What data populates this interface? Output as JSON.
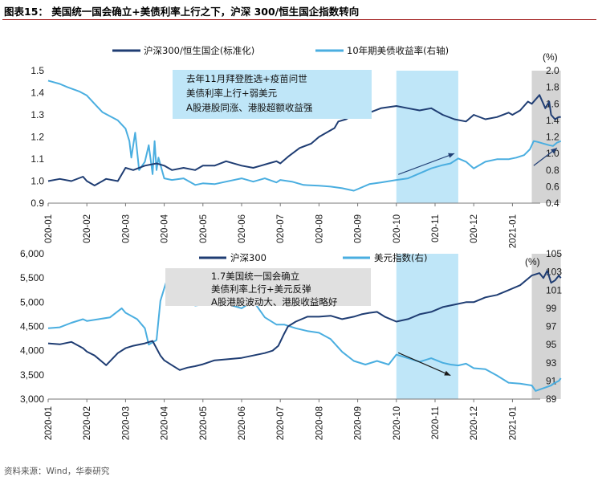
{
  "figure_title": "图表15： 美国统一国会确立+美债利率上行之下，沪深 300/恒生国企指数转向",
  "source": "资料来源：Wind，华泰研究",
  "colors": {
    "dark": "#1f3d73",
    "light": "#4aaee0",
    "highlight": "#bfe6f8",
    "gray": "#d4d4d4",
    "callout": "#e0e0e0",
    "title_rule": "#9a0d0d"
  },
  "chart_data": [
    {
      "type": "line",
      "legend": [
        {
          "name": "沪深300/恒生国企(标准化)",
          "key": "ratio"
        },
        {
          "name": "10年期美债收益率(右轴)",
          "key": "yield"
        }
      ],
      "y_ticks": [
        "1.5",
        "1.4",
        "1.3",
        "1.2",
        "1.1",
        "1.0",
        "0.9"
      ],
      "y_range": [
        0.9,
        1.5
      ],
      "y2_ticks": [
        "2.0",
        "1.8",
        "1.6",
        "1.4",
        "1.2",
        "1.0",
        "0.8",
        "0.6",
        "0.4"
      ],
      "y2_range": [
        0.4,
        2.0
      ],
      "y2_unit": "(%)",
      "x_ticks": [
        "2020-01",
        "2020-02",
        "2020-03",
        "2020-04",
        "2020-05",
        "2020-06",
        "2020-07",
        "2020-08",
        "2020-09",
        "2020-10",
        "2020-11",
        "2020-12",
        "2021-01"
      ],
      "x_tick_labels": [
        "020-01",
        "020-02",
        "020-03",
        "020-04",
        "020-05",
        "020-06",
        "020-07",
        "020-08",
        "020-09",
        "020-10",
        "020-11",
        "020-12",
        "2021-01"
      ],
      "highlight_month_range": [
        9.0,
        10.6
      ],
      "gray_month_range": [
        12.5,
        13.25
      ],
      "callout": [
        "去年11月拜登胜选+疫苗问世",
        "美债利率上行+弱美元",
        "A股港股同涨、港股超额收益强"
      ],
      "arrows": [
        {
          "from": [
            9.05,
            1.03
          ],
          "to": [
            10.5,
            1.125
          ]
        },
        {
          "from": [
            12.55,
            1.07
          ],
          "to": [
            13.15,
            1.15
          ]
        }
      ],
      "series": {
        "ratio": {
          "x": [
            0,
            0.3,
            0.6,
            0.9,
            1.0,
            1.2,
            1.5,
            1.8,
            2.0,
            2.2,
            2.5,
            2.8,
            3.0,
            3.2,
            3.5,
            3.8,
            4.0,
            4.3,
            4.6,
            5.0,
            5.3,
            5.5,
            5.7,
            5.9,
            6.0,
            6.2,
            6.5,
            6.8,
            7.0,
            7.2,
            7.4,
            7.5,
            7.7,
            8.0,
            8.3,
            8.6,
            9.0,
            9.3,
            9.6,
            9.9,
            10.2,
            10.5,
            10.8,
            11.0,
            11.3,
            11.6,
            11.9,
            12.0,
            12.2,
            12.4,
            12.5,
            12.7,
            12.85,
            12.95,
            13.0,
            13.1,
            13.2,
            13.25
          ],
          "values": [
            1.0,
            1.01,
            1.0,
            1.02,
            1.0,
            0.98,
            1.01,
            1.0,
            1.06,
            1.05,
            1.07,
            1.08,
            1.07,
            1.05,
            1.06,
            1.05,
            1.07,
            1.07,
            1.09,
            1.07,
            1.06,
            1.07,
            1.08,
            1.09,
            1.08,
            1.11,
            1.15,
            1.17,
            1.2,
            1.22,
            1.24,
            1.27,
            1.28,
            1.31,
            1.31,
            1.33,
            1.34,
            1.33,
            1.32,
            1.33,
            1.3,
            1.28,
            1.27,
            1.3,
            1.28,
            1.29,
            1.31,
            1.3,
            1.32,
            1.36,
            1.35,
            1.39,
            1.33,
            1.36,
            1.3,
            1.28,
            1.29,
            1.29
          ]
        },
        "yield": {
          "x": [
            0,
            0.3,
            0.5,
            0.8,
            1.0,
            1.2,
            1.4,
            1.6,
            1.8,
            2.0,
            2.1,
            2.15,
            2.25,
            2.35,
            2.5,
            2.6,
            2.7,
            2.75,
            2.8,
            2.85,
            3.0,
            3.2,
            3.5,
            3.8,
            4.0,
            4.3,
            4.6,
            5.0,
            5.3,
            5.6,
            5.9,
            6.0,
            6.3,
            6.6,
            7.0,
            7.3,
            7.6,
            7.9,
            8.0,
            8.3,
            8.6,
            9.0,
            9.3,
            9.6,
            9.9,
            10.2,
            10.4,
            10.6,
            10.8,
            11.0,
            11.3,
            11.6,
            11.9,
            12.1,
            12.3,
            12.45,
            12.55,
            12.65,
            12.8,
            12.95,
            13.05,
            13.15,
            13.25
          ],
          "values": [
            1.88,
            1.84,
            1.8,
            1.75,
            1.7,
            1.6,
            1.5,
            1.45,
            1.4,
            1.3,
            1.15,
            0.95,
            1.25,
            0.8,
            0.9,
            1.1,
            0.75,
            1.15,
            0.8,
            0.95,
            0.7,
            0.68,
            0.7,
            0.62,
            0.64,
            0.63,
            0.66,
            0.7,
            0.66,
            0.7,
            0.65,
            0.68,
            0.66,
            0.62,
            0.61,
            0.6,
            0.58,
            0.55,
            0.57,
            0.63,
            0.65,
            0.68,
            0.7,
            0.76,
            0.82,
            0.86,
            0.88,
            0.94,
            0.9,
            0.82,
            0.9,
            0.93,
            0.93,
            0.95,
            0.98,
            1.05,
            1.15,
            1.14,
            1.12,
            1.1,
            1.09,
            1.13,
            1.15
          ]
        }
      }
    },
    {
      "type": "line",
      "legend": [
        {
          "name": "沪深300",
          "key": "hs300"
        },
        {
          "name": "美元指数(右)",
          "key": "dxy"
        }
      ],
      "y_ticks": [
        "6,000",
        "5,500",
        "5,000",
        "4,500",
        "4,000",
        "3,500",
        "3,000"
      ],
      "y_range": [
        3000,
        6000
      ],
      "y2_ticks": [
        "105",
        "103",
        "101",
        "99",
        "97",
        "95",
        "93",
        "91",
        "89"
      ],
      "y2_range": [
        89,
        105
      ],
      "y2_unit": "(%)",
      "x_ticks": [
        "2020-01",
        "2020-02",
        "2020-03",
        "2020-04",
        "2020-05",
        "2020-06",
        "2020-07",
        "2020-08",
        "2020-09",
        "2020-10",
        "2020-11",
        "2020-12",
        "2021-01"
      ],
      "x_tick_labels": [
        "2020-01",
        "2020-02",
        "2020-03",
        "2020-04",
        "2020-05",
        "2020-06",
        "2020-07",
        "2020-08",
        "2020-09",
        "2020-10",
        "2020-11",
        "2020-12",
        "2021-01"
      ],
      "highlight_month_range": [
        9.0,
        10.6
      ],
      "gray_month_range": [
        12.5,
        13.25
      ],
      "callout": [
        "1.7美国统一国会确立",
        "美债利率上行+美元反弹",
        "A股港股波动大、港股收益略好"
      ],
      "arrows": [
        {
          "from": [
            9.05,
            94.1
          ],
          "to": [
            10.4,
            91.6
          ]
        }
      ],
      "series": {
        "hs300": {
          "x": [
            0,
            0.3,
            0.6,
            0.9,
            1.0,
            1.2,
            1.5,
            1.8,
            2.0,
            2.2,
            2.5,
            2.7,
            2.9,
            3.0,
            3.2,
            3.4,
            3.6,
            3.8,
            4.0,
            4.3,
            4.6,
            5.0,
            5.3,
            5.6,
            5.8,
            5.95,
            6.1,
            6.2,
            6.4,
            6.7,
            7.0,
            7.3,
            7.6,
            7.9,
            8.1,
            8.3,
            8.5,
            8.7,
            9.0,
            9.3,
            9.6,
            9.9,
            10.2,
            10.5,
            10.8,
            11.0,
            11.3,
            11.6,
            11.9,
            12.2,
            12.5,
            12.7,
            12.8,
            12.9,
            13.0,
            13.1,
            13.2,
            13.25
          ],
          "values": [
            4150,
            4130,
            4180,
            4050,
            3980,
            3900,
            3700,
            3950,
            4050,
            4100,
            4150,
            4200,
            3900,
            3800,
            3700,
            3600,
            3650,
            3680,
            3720,
            3800,
            3820,
            3850,
            3900,
            3950,
            4000,
            4100,
            4350,
            4500,
            4600,
            4700,
            4700,
            4720,
            4650,
            4700,
            4750,
            4780,
            4800,
            4700,
            4600,
            4650,
            4750,
            4800,
            4900,
            4950,
            5000,
            5000,
            5100,
            5150,
            5250,
            5350,
            5550,
            5600,
            5500,
            5650,
            5400,
            5450,
            5550,
            5500
          ]
        },
        "dxy": {
          "x": [
            0,
            0.3,
            0.6,
            0.9,
            1.0,
            1.3,
            1.6,
            1.9,
            2.0,
            2.3,
            2.5,
            2.6,
            2.8,
            2.9,
            3.0,
            3.1,
            3.2,
            3.3,
            3.5,
            3.8,
            4.0,
            4.3,
            4.6,
            5.0,
            5.3,
            5.6,
            5.9,
            6.1,
            6.4,
            6.7,
            7.0,
            7.3,
            7.6,
            7.9,
            8.2,
            8.5,
            8.8,
            9.0,
            9.3,
            9.6,
            9.9,
            10.2,
            10.4,
            10.6,
            10.8,
            11.0,
            11.3,
            11.6,
            11.9,
            12.2,
            12.5,
            12.6,
            12.8,
            13.0,
            13.1,
            13.2,
            13.25
          ],
          "values": [
            96.8,
            96.9,
            97.4,
            97.8,
            97.6,
            97.8,
            98.0,
            99.0,
            98.5,
            97.8,
            96.8,
            95.0,
            95.5,
            99.8,
            101.2,
            102.5,
            100.8,
            99.5,
            100.1,
            99.3,
            99.4,
            100.0,
            99.5,
            99.0,
            99.8,
            98.0,
            97.2,
            97.2,
            96.8,
            96.5,
            96.3,
            95.6,
            94.2,
            93.2,
            92.8,
            93.2,
            92.8,
            93.9,
            93.5,
            93.1,
            93.5,
            93.0,
            92.8,
            92.7,
            92.9,
            92.4,
            92.3,
            91.6,
            90.8,
            90.7,
            90.5,
            89.9,
            90.2,
            90.5,
            90.8,
            91.0,
            91.3
          ]
        }
      }
    }
  ]
}
